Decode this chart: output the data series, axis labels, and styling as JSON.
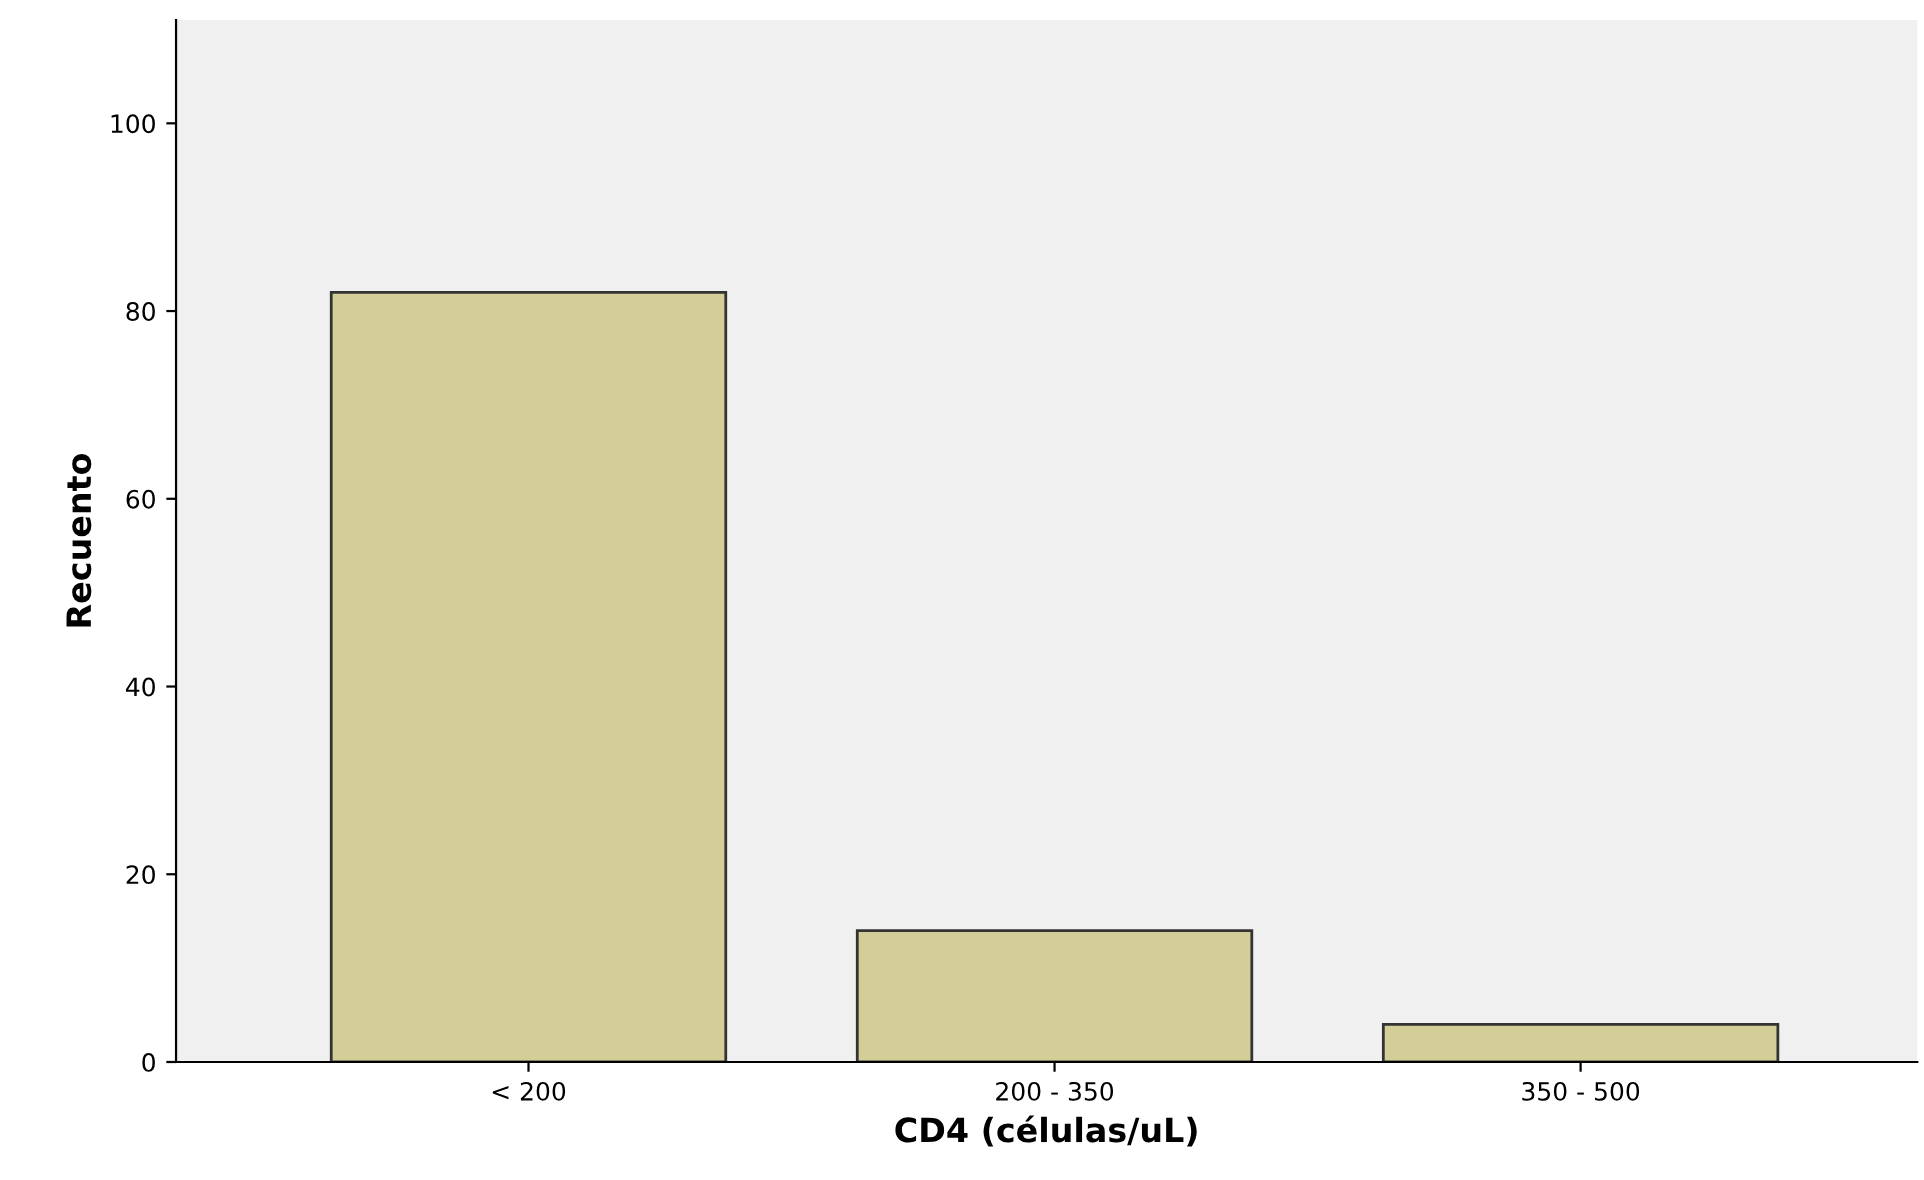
{
  "chart_data": {
    "type": "bar",
    "xlabel": "CD4 (células/uL)",
    "ylabel": "Recuento",
    "categories": [
      "< 200",
      "200 - 350",
      "350 - 500"
    ],
    "values": [
      82,
      14,
      4
    ],
    "color": "#d3ce97",
    "ylim": [
      0,
      111
    ],
    "yticks": [
      0,
      20,
      40,
      60,
      80,
      100
    ],
    "grid": false,
    "legend": false
  }
}
